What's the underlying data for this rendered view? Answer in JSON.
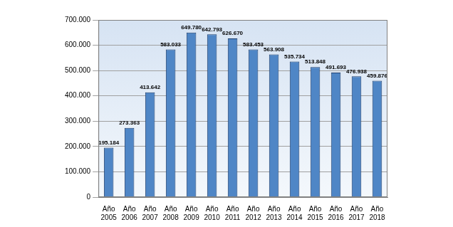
{
  "chart_data": {
    "type": "bar",
    "categories": [
      "Año 2005",
      "Año 2006",
      "Año 2007",
      "Año 2008",
      "Año 2009",
      "Año 2010",
      "Año 2011",
      "Año 2012",
      "Año 2013",
      "Año 2014",
      "Año 2015",
      "Año 2016",
      "Año 2017",
      "Año 2018"
    ],
    "values": [
      195184,
      273363,
      413642,
      583033,
      649780,
      642793,
      626670,
      583453,
      563908,
      535734,
      513848,
      491693,
      476938,
      459876
    ],
    "value_labels": [
      "195.184",
      "273.363",
      "413.642",
      "583.033",
      "649.780",
      "642.793",
      "626.670",
      "583.453",
      "563.908",
      "535.734",
      "513.848",
      "491.693",
      "476.938",
      "459.876"
    ],
    "color": "#4f86c6",
    "ylim": [
      0,
      700000
    ],
    "yticks": [
      {
        "value": 0,
        "label": "0"
      },
      {
        "value": 100000,
        "label": "100.000"
      },
      {
        "value": 200000,
        "label": "200.000"
      },
      {
        "value": 300000,
        "label": "300.000"
      },
      {
        "value": 400000,
        "label": "400.000"
      },
      {
        "value": 500000,
        "label": "500.000"
      },
      {
        "value": 600000,
        "label": "600.000"
      },
      {
        "value": 700000,
        "label": "700.000"
      }
    ],
    "grid": true,
    "data_labels": true
  }
}
